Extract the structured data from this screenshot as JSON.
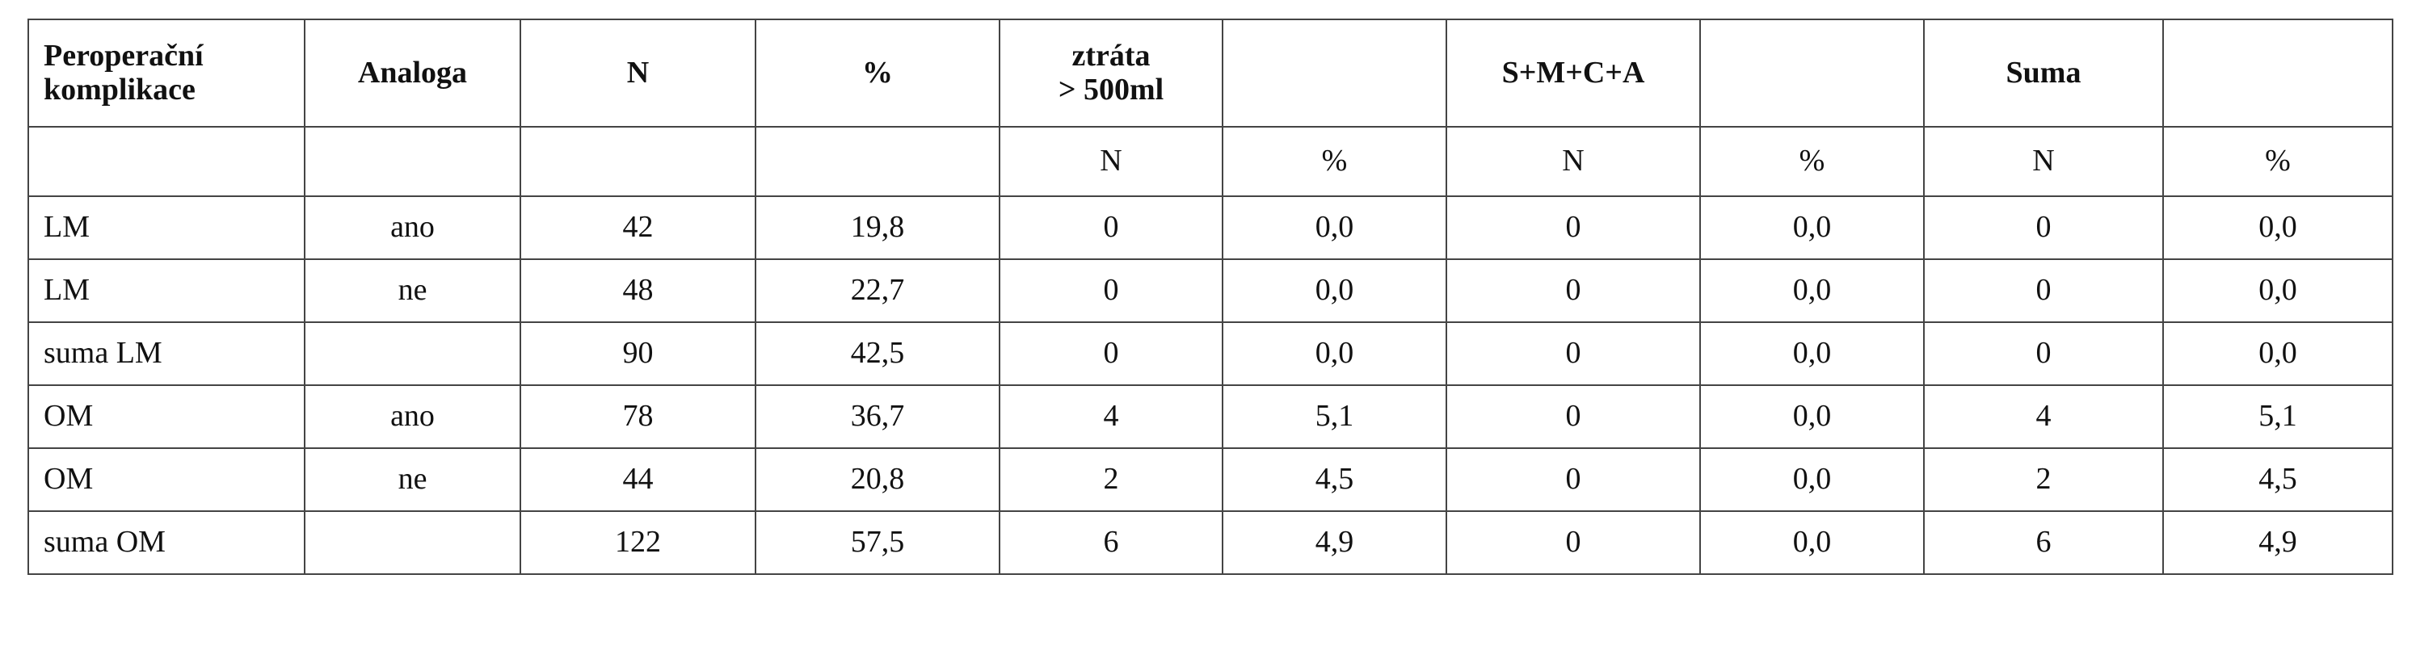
{
  "table": {
    "header": [
      "Peroperační\nkomplikace",
      "Analoga",
      "N",
      "%",
      "ztráta\n> 500ml",
      null,
      "S+M+C+A",
      null,
      "Suma",
      null
    ],
    "subheader": [
      null,
      null,
      null,
      null,
      "N",
      "%",
      "N",
      "%",
      "N",
      "%"
    ],
    "rows": [
      [
        "LM",
        "ano",
        "42",
        "19,8",
        "0",
        "0,0",
        "0",
        "0,0",
        "0",
        "0,0"
      ],
      [
        "LM",
        "ne",
        "48",
        "22,7",
        "0",
        "0,0",
        "0",
        "0,0",
        "0",
        "0,0"
      ],
      [
        "suma LM",
        null,
        "90",
        "42,5",
        "0",
        "0,0",
        "0",
        "0,0",
        "0",
        "0,0"
      ],
      [
        "OM",
        "ano",
        "78",
        "36,7",
        "4",
        "5,1",
        "0",
        "0,0",
        "4",
        "5,1"
      ],
      [
        "OM",
        "ne",
        "44",
        "20,8",
        "2",
        "4,5",
        "0",
        "0,0",
        "2",
        "4,5"
      ],
      [
        "suma OM",
        null,
        "122",
        "57,5",
        "6",
        "4,9",
        "0",
        "0,0",
        "6",
        "4,9"
      ]
    ]
  }
}
